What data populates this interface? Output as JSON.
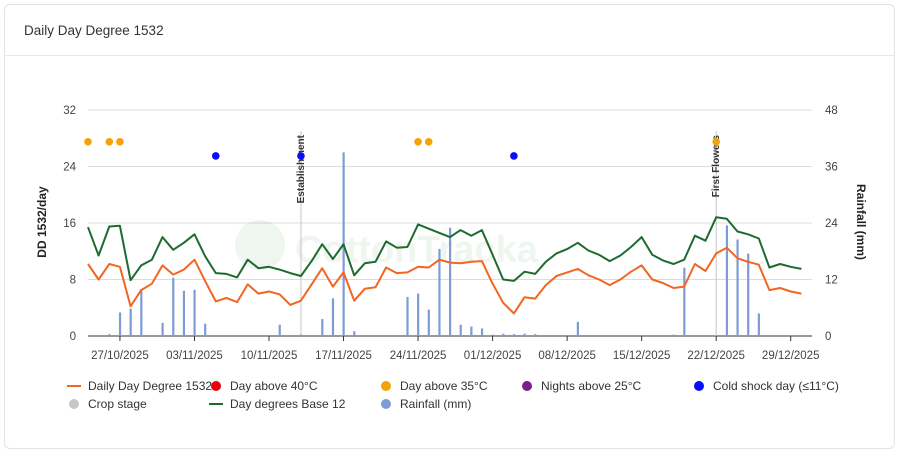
{
  "card": {
    "title": "Daily Day Degree 1532"
  },
  "chart_data": {
    "type": "line",
    "ylabel": "DD 1532/day",
    "ylabel_right": "Rainfall (mm)",
    "ylim": [
      0,
      32
    ],
    "ylim_right": [
      0,
      48
    ],
    "y_ticks": [
      "0",
      "8",
      "16",
      "24",
      "32"
    ],
    "y_ticks_right": [
      "0",
      "12",
      "24",
      "36",
      "48"
    ],
    "x_tick_labels": [
      "27/10/2025",
      "03/11/2025",
      "10/11/2025",
      "17/11/2025",
      "24/11/2025",
      "01/12/2025",
      "08/12/2025",
      "15/12/2025",
      "22/12/2025",
      "29/12/2025"
    ],
    "x_start": "2025-10-24",
    "x_end": "2025-12-31",
    "legend": [
      {
        "name": "Daily Day Degree 1532",
        "symbol": "line",
        "color": "#f26522"
      },
      {
        "name": "Day above 40°C",
        "symbol": "dot",
        "color": "#e8000b"
      },
      {
        "name": "Day above 35°C",
        "symbol": "dot",
        "color": "#f5a30a"
      },
      {
        "name": "Nights above 25°C",
        "symbol": "dot",
        "color": "#7a1f8b"
      },
      {
        "name": "Cold shock day (≤11°C)",
        "symbol": "dot",
        "color": "#0a10f5"
      },
      {
        "name": "Crop stage",
        "symbol": "dot",
        "color": "#c6c6c6"
      },
      {
        "name": "Day degrees Base 12",
        "symbol": "line",
        "color": "#1c6b2f"
      },
      {
        "name": "Rainfall (mm)",
        "symbol": "dot",
        "color": "#7e9bd6"
      }
    ],
    "series": [
      {
        "name": "Daily Day Degree 1532",
        "color": "#f26522",
        "dates": [
          "2025-10-24",
          "2025-10-25",
          "2025-10-26",
          "2025-10-27",
          "2025-10-28",
          "2025-10-29",
          "2025-10-30",
          "2025-10-31",
          "2025-11-01",
          "2025-11-02",
          "2025-11-03",
          "2025-11-04",
          "2025-11-05",
          "2025-11-06",
          "2025-11-07",
          "2025-11-08",
          "2025-11-09",
          "2025-11-10",
          "2025-11-11",
          "2025-11-12",
          "2025-11-13",
          "2025-11-14",
          "2025-11-15",
          "2025-11-16",
          "2025-11-17",
          "2025-11-18",
          "2025-11-19",
          "2025-11-20",
          "2025-11-21",
          "2025-11-22",
          "2025-11-23",
          "2025-11-24",
          "2025-11-25",
          "2025-11-26",
          "2025-11-27",
          "2025-11-28",
          "2025-11-29",
          "2025-11-30",
          "2025-12-01",
          "2025-12-02",
          "2025-12-03",
          "2025-12-04",
          "2025-12-05",
          "2025-12-06",
          "2025-12-07",
          "2025-12-08",
          "2025-12-09",
          "2025-12-10",
          "2025-12-11",
          "2025-12-12",
          "2025-12-13",
          "2025-12-14",
          "2025-12-15",
          "2025-12-16",
          "2025-12-17",
          "2025-12-18",
          "2025-12-19",
          "2025-12-20",
          "2025-12-21",
          "2025-12-22",
          "2025-12-23",
          "2025-12-24",
          "2025-12-25",
          "2025-12-26",
          "2025-12-27",
          "2025-12-28",
          "2025-12-29",
          "2025-12-30"
        ],
        "values": [
          10.2,
          8.0,
          10.2,
          9.8,
          4.2,
          6.5,
          7.4,
          10.0,
          8.7,
          9.4,
          10.8,
          7.8,
          4.9,
          5.4,
          4.8,
          7.3,
          6.0,
          6.3,
          5.9,
          4.4,
          5.0,
          7.3,
          9.6,
          7.0,
          9.0,
          5.0,
          6.7,
          6.9,
          9.7,
          8.9,
          9.0,
          9.8,
          9.7,
          10.8,
          10.4,
          10.3,
          10.5,
          10.6,
          7.4,
          4.7,
          3.2,
          5.5,
          5.3,
          7.2,
          8.5,
          9.0,
          9.5,
          8.6,
          8.0,
          7.2,
          8.0,
          9.1,
          10.0,
          8.0,
          7.5,
          6.8,
          7.0,
          10.2,
          9.2,
          11.7,
          12.5,
          11.0,
          10.5,
          10.1,
          6.5,
          6.8,
          6.3,
          6.0
        ]
      },
      {
        "name": "Day degrees Base 12",
        "color": "#1c6b2f",
        "dates": [
          "2025-10-24",
          "2025-10-25",
          "2025-10-26",
          "2025-10-27",
          "2025-10-28",
          "2025-10-29",
          "2025-10-30",
          "2025-10-31",
          "2025-11-01",
          "2025-11-02",
          "2025-11-03",
          "2025-11-04",
          "2025-11-05",
          "2025-11-06",
          "2025-11-07",
          "2025-11-08",
          "2025-11-09",
          "2025-11-10",
          "2025-11-11",
          "2025-11-12",
          "2025-11-13",
          "2025-11-14",
          "2025-11-15",
          "2025-11-16",
          "2025-11-17",
          "2025-11-18",
          "2025-11-19",
          "2025-11-20",
          "2025-11-21",
          "2025-11-22",
          "2025-11-23",
          "2025-11-24",
          "2025-11-25",
          "2025-11-26",
          "2025-11-27",
          "2025-11-28",
          "2025-11-29",
          "2025-11-30",
          "2025-12-01",
          "2025-12-02",
          "2025-12-03",
          "2025-12-04",
          "2025-12-05",
          "2025-12-06",
          "2025-12-07",
          "2025-12-08",
          "2025-12-09",
          "2025-12-10",
          "2025-12-11",
          "2025-12-12",
          "2025-12-13",
          "2025-12-14",
          "2025-12-15",
          "2025-12-16",
          "2025-12-17",
          "2025-12-18",
          "2025-12-19",
          "2025-12-20",
          "2025-12-21",
          "2025-12-22",
          "2025-12-23",
          "2025-12-24",
          "2025-12-25",
          "2025-12-26",
          "2025-12-27",
          "2025-12-28",
          "2025-12-29",
          "2025-12-30"
        ],
        "values": [
          15.4,
          11.4,
          15.5,
          15.6,
          7.9,
          10.0,
          10.8,
          14.0,
          12.2,
          13.2,
          14.4,
          11.3,
          8.9,
          8.8,
          8.3,
          10.8,
          9.6,
          9.8,
          9.4,
          8.9,
          8.5,
          10.6,
          13.0,
          10.9,
          13.0,
          8.6,
          10.3,
          10.5,
          13.4,
          12.5,
          12.6,
          15.8,
          15.2,
          14.6,
          14.0,
          15.0,
          14.2,
          15.0,
          11.5,
          8.0,
          7.8,
          9.1,
          8.8,
          10.5,
          11.7,
          12.3,
          13.2,
          12.1,
          11.5,
          10.6,
          11.4,
          12.6,
          14.0,
          11.5,
          10.7,
          10.2,
          10.8,
          14.2,
          13.5,
          16.8,
          16.6,
          14.8,
          14.4,
          13.8,
          9.7,
          10.2,
          9.8,
          9.5
        ]
      }
    ],
    "rainfall": {
      "name": "Rainfall (mm)",
      "color": "#7e9bd6",
      "dates": [
        "2025-10-26",
        "2025-10-27",
        "2025-10-28",
        "2025-10-29",
        "2025-10-31",
        "2025-11-01",
        "2025-11-02",
        "2025-11-03",
        "2025-11-04",
        "2025-11-11",
        "2025-11-13",
        "2025-11-15",
        "2025-11-16",
        "2025-11-17",
        "2025-11-18",
        "2025-11-23",
        "2025-11-24",
        "2025-11-25",
        "2025-11-26",
        "2025-11-27",
        "2025-11-28",
        "2025-11-29",
        "2025-11-30",
        "2025-12-01",
        "2025-12-02",
        "2025-12-03",
        "2025-12-04",
        "2025-12-05",
        "2025-12-09",
        "2025-12-18",
        "2025-12-19",
        "2025-12-23",
        "2025-12-24",
        "2025-12-25",
        "2025-12-26"
      ],
      "values": [
        0.4,
        5.0,
        5.8,
        10.0,
        2.8,
        12.4,
        9.6,
        9.8,
        2.6,
        2.4,
        0.3,
        3.6,
        8.0,
        39.0,
        1.0,
        8.3,
        9.0,
        5.6,
        18.5,
        23.0,
        2.4,
        2.0,
        1.6,
        0.3,
        0.5,
        0.4,
        0.5,
        0.4,
        3.0,
        0.3,
        14.5,
        23.5,
        20.5,
        17.5,
        4.8
      ]
    },
    "markers": [
      {
        "type": "Day above 35°C",
        "color": "#f5a30a",
        "dates": [
          "2025-10-24",
          "2025-10-26",
          "2025-10-27",
          "2025-11-24",
          "2025-11-25",
          "2025-12-22"
        ],
        "value": 27.5
      },
      {
        "type": "Cold shock day (≤11°C)",
        "color": "#0a10f5",
        "dates": [
          "2025-11-05",
          "2025-11-13",
          "2025-12-03"
        ],
        "value": 25.5
      }
    ],
    "crop_stages": [
      {
        "label": "Establishment",
        "date": "2025-11-13"
      },
      {
        "label": "First Flowers",
        "date": "2025-12-22"
      }
    ],
    "watermark": "CottonTracka"
  }
}
